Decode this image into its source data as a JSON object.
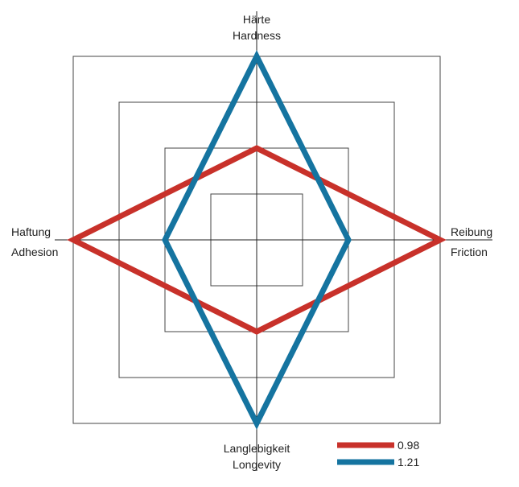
{
  "chart_data": {
    "type": "radar",
    "grid": "square",
    "grid_levels": 4,
    "range": [
      0,
      4
    ],
    "axes": [
      {
        "label_de": "Härte",
        "label_en": "Hardness"
      },
      {
        "label_de": "Reibung",
        "label_en": "Friction"
      },
      {
        "label_de": "Langlebigkeit",
        "label_en": "Longevity"
      },
      {
        "label_de": "Haftung",
        "label_en": "Adhesion"
      }
    ],
    "series": [
      {
        "name": "0.98",
        "color": "#c8312a",
        "values": [
          2,
          4,
          2,
          4
        ]
      },
      {
        "name": "1.21",
        "color": "#1574a0",
        "values": [
          4,
          2,
          4,
          2
        ]
      }
    ],
    "legend_position": "bottom-right"
  }
}
